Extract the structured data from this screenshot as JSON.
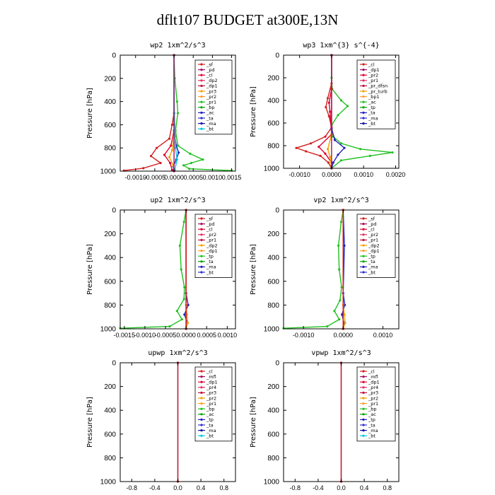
{
  "figure_title": "dflt107  BUDGET at300E,13N",
  "chart_data": [
    {
      "type": "line",
      "title": "wp2   1xm^2/s^3",
      "ylabel": "Pressure [hPa]",
      "y_ticks": [
        0,
        200,
        400,
        600,
        800,
        1000
      ],
      "x_tick_labels": [
        "-0.0010",
        "-0.0005",
        "0.0000",
        "0.0005",
        "0.0010",
        "0.0015"
      ],
      "xlim": [
        -0.0014,
        0.0016
      ],
      "ylim": [
        1000,
        0
      ],
      "legend": [
        "_sf",
        "_pd",
        "_cl",
        "_dp2",
        "_dp1",
        "_pr3",
        "_pr2",
        "_pr1",
        "_bp",
        "_ac",
        "_ta",
        "_ma",
        "_bt"
      ],
      "series": [
        {
          "color": "#2020c0",
          "points": [
            [
              0,
              0
            ],
            [
              0,
              600
            ],
            [
              2e-05,
              700
            ],
            [
              6e-05,
              780
            ],
            [
              0.00012,
              840
            ],
            [
              6e-05,
              900
            ],
            [
              -2e-05,
              960
            ],
            [
              0,
              1000
            ]
          ]
        },
        {
          "color": "#d02020",
          "points": [
            [
              0,
              0
            ],
            [
              0,
              500
            ],
            [
              -5e-05,
              600
            ],
            [
              -0.00012,
              720
            ],
            [
              -0.00045,
              800
            ],
            [
              -0.0006,
              870
            ],
            [
              -0.00035,
              930
            ],
            [
              -0.0008,
              975
            ],
            [
              -0.0013,
              995
            ]
          ]
        },
        {
          "color": "#e00030",
          "points": [
            [
              0,
              0
            ],
            [
              0,
              650
            ],
            [
              -8e-05,
              780
            ],
            [
              -0.00025,
              860
            ],
            [
              -0.0001,
              930
            ],
            [
              -5e-05,
              990
            ]
          ]
        },
        {
          "color": "#f5a000",
          "points": [
            [
              0,
              0
            ],
            [
              0,
              700
            ],
            [
              -5e-05,
              820
            ],
            [
              -0.00012,
              880
            ],
            [
              -2e-05,
              950
            ],
            [
              0,
              1000
            ]
          ]
        },
        {
          "color": "#20c020",
          "points": [
            [
              0,
              0
            ],
            [
              2e-05,
              200
            ],
            [
              8e-05,
              400
            ],
            [
              0.0001,
              500
            ],
            [
              4e-05,
              650
            ],
            [
              0.0001,
              780
            ],
            [
              0.00042,
              850
            ],
            [
              0.00075,
              900
            ],
            [
              0.00045,
              930
            ],
            [
              0.00025,
              950
            ],
            [
              0.0004,
              980
            ],
            [
              0.0015,
              995
            ]
          ]
        },
        {
          "color": "#00c8e0",
          "points": [
            [
              0,
              0
            ],
            [
              1e-05,
              500
            ],
            [
              4e-05,
              800
            ],
            [
              8e-05,
              900
            ],
            [
              2e-05,
              990
            ]
          ]
        },
        {
          "color": "#a01060",
          "points": [
            [
              0,
              0
            ],
            [
              0,
              1000
            ]
          ]
        }
      ]
    },
    {
      "type": "line",
      "title": "wp3   1xm^{3} s^{-4}",
      "ylabel": "Pressure [hPa]",
      "y_ticks": [
        0,
        200,
        400,
        600,
        800,
        1000
      ],
      "x_tick_labels": [
        "-0.0010",
        "0.0000",
        "0.0010",
        "0.0020"
      ],
      "xlim": [
        -0.0015,
        0.0021
      ],
      "ylim": [
        1000,
        0
      ],
      "legend": [
        "_cl",
        "_dp1",
        "_pr2",
        "_pr1",
        "_pr_dfsn",
        "_pr_turb",
        "_bp1",
        "_ac",
        "_tp",
        "_ta",
        "_ma",
        "_bt"
      ],
      "series": [
        {
          "color": "#20c020",
          "points": [
            [
              0,
              0
            ],
            [
              0,
              200
            ],
            [
              2e-05,
              300
            ],
            [
              0.0003,
              400
            ],
            [
              0.0005,
              450
            ],
            [
              0.0002,
              530
            ],
            [
              0,
              620
            ],
            [
              5e-05,
              720
            ],
            [
              0.0003,
              780
            ],
            [
              0.0009,
              830
            ],
            [
              0.0019,
              860
            ],
            [
              0.0012,
              890
            ],
            [
              0.0003,
              930
            ],
            [
              0,
              1000
            ]
          ]
        },
        {
          "color": "#d02020",
          "points": [
            [
              0,
              0
            ],
            [
              0,
              250
            ],
            [
              -0.00012,
              380
            ],
            [
              -0.00018,
              460
            ],
            [
              -8e-05,
              540
            ],
            [
              0,
              640
            ],
            [
              -0.0002,
              720
            ],
            [
              -0.00065,
              780
            ],
            [
              -0.0011,
              820
            ],
            [
              -0.0008,
              850
            ],
            [
              -0.00035,
              890
            ],
            [
              -0.0001,
              950
            ],
            [
              0,
              1000
            ]
          ]
        },
        {
          "color": "#e00030",
          "points": [
            [
              0,
              0
            ],
            [
              0,
              300
            ],
            [
              -8e-05,
              420
            ],
            [
              -5e-05,
              500
            ],
            [
              0,
              700
            ],
            [
              -0.0004,
              810
            ],
            [
              -0.0002,
              870
            ],
            [
              0,
              950
            ]
          ]
        },
        {
          "color": "#2020c0",
          "points": [
            [
              0,
              0
            ],
            [
              0,
              650
            ],
            [
              0.0001,
              750
            ],
            [
              0.0004,
              820
            ],
            [
              0.0002,
              880
            ],
            [
              5e-05,
              950
            ],
            [
              0,
              1000
            ]
          ]
        },
        {
          "color": "#f5a000",
          "points": [
            [
              0,
              0
            ],
            [
              0,
              700
            ],
            [
              -0.00012,
              830
            ],
            [
              -5e-05,
              900
            ],
            [
              0,
              1000
            ]
          ]
        },
        {
          "color": "#a01060",
          "points": [
            [
              0,
              0
            ],
            [
              0,
              1000
            ]
          ]
        }
      ]
    },
    {
      "type": "line",
      "title": "up2   1xm^2/s^3",
      "ylabel": "Pressure [hPa]",
      "y_ticks": [
        0,
        200,
        400,
        600,
        800,
        1000
      ],
      "x_tick_labels": [
        "-0.0015",
        "-0.0010",
        "-0.0005",
        "0.0000",
        "0.0005",
        "0.0010"
      ],
      "xlim": [
        -0.0016,
        0.0012
      ],
      "ylim": [
        1000,
        0
      ],
      "legend": [
        "_sf",
        "_pd",
        "_cl",
        "_pr2",
        "_pr1",
        "_dp2",
        "_dp1",
        "_tp",
        "_ta",
        "_ma",
        "_bt"
      ],
      "series": [
        {
          "color": "#20c020",
          "points": [
            [
              0,
              0
            ],
            [
              -5e-05,
              100
            ],
            [
              -0.00015,
              300
            ],
            [
              -0.00012,
              500
            ],
            [
              -4e-05,
              650
            ],
            [
              -5e-05,
              750
            ],
            [
              -0.00022,
              850
            ],
            [
              -0.0001,
              920
            ],
            [
              -0.0004,
              980
            ],
            [
              -0.0016,
              995
            ]
          ]
        },
        {
          "color": "#2020c0",
          "points": [
            [
              0,
              0
            ],
            [
              0,
              700
            ],
            [
              5e-05,
              800
            ],
            [
              -4e-05,
              880
            ],
            [
              3e-05,
              950
            ],
            [
              0,
              1000
            ]
          ]
        },
        {
          "color": "#f5a000",
          "points": [
            [
              0,
              0
            ],
            [
              0,
              800
            ],
            [
              2e-05,
              880
            ],
            [
              4e-05,
              950
            ],
            [
              0,
              1000
            ]
          ]
        },
        {
          "color": "#e00030",
          "points": [
            [
              0,
              0
            ],
            [
              0,
              1000
            ]
          ]
        },
        {
          "color": "#d02020",
          "points": [
            [
              0,
              0
            ],
            [
              0,
              1000
            ]
          ]
        }
      ]
    },
    {
      "type": "line",
      "title": "vp2   1xm^2/s^3",
      "ylabel": "Pressure [hPa]",
      "y_ticks": [
        0,
        200,
        400,
        600,
        800,
        1000
      ],
      "x_tick_labels": [
        "-0.0010",
        "0.0000",
        "0.0010"
      ],
      "xlim": [
        -0.0015,
        0.0014
      ],
      "ylim": [
        1000,
        0
      ],
      "legend": [
        "_sf",
        "_pd",
        "_cl",
        "_pr2",
        "_pr1",
        "_dp2",
        "_dp1",
        "_tp",
        "_ta",
        "_ma",
        "_bt"
      ],
      "series": [
        {
          "color": "#20c020",
          "points": [
            [
              0,
              0
            ],
            [
              -5e-05,
              100
            ],
            [
              -0.00012,
              300
            ],
            [
              -0.0001,
              500
            ],
            [
              -4e-05,
              650
            ],
            [
              -8e-05,
              760
            ],
            [
              -0.00022,
              850
            ],
            [
              -0.0001,
              920
            ],
            [
              -0.0004,
              980
            ],
            [
              -0.0015,
              995
            ]
          ]
        },
        {
          "color": "#2020c0",
          "points": [
            [
              0,
              0
            ],
            [
              3e-05,
              300
            ],
            [
              0,
              700
            ],
            [
              4e-05,
              800
            ],
            [
              -3e-05,
              880
            ],
            [
              2e-05,
              950
            ],
            [
              0,
              1000
            ]
          ]
        },
        {
          "color": "#f5a000",
          "points": [
            [
              0,
              0
            ],
            [
              0,
              800
            ],
            [
              3e-05,
              880
            ],
            [
              5e-05,
              950
            ],
            [
              0,
              1000
            ]
          ]
        },
        {
          "color": "#e00030",
          "points": [
            [
              0,
              0
            ],
            [
              0,
              1000
            ]
          ]
        },
        {
          "color": "#d02020",
          "points": [
            [
              0,
              0
            ],
            [
              0,
              1000
            ]
          ]
        }
      ]
    },
    {
      "type": "line",
      "title": "upwp   1xm^2/s^3",
      "ylabel": "Pressure [hPa]",
      "y_ticks": [
        0,
        200,
        400,
        600,
        800,
        1000
      ],
      "x_tick_labels": [
        "-0.8",
        "-0.4",
        "0.0",
        "0.4",
        "0.8"
      ],
      "xlim": [
        -1.0,
        1.0
      ],
      "ylim": [
        1000,
        0
      ],
      "legend": [
        "_cl",
        "_mfl",
        "_dp1",
        "_pr4",
        "_pr3",
        "_pr2",
        "_pr1",
        "_bp",
        "_ac",
        "_tp",
        "_ta",
        "_ma",
        "_bt"
      ],
      "series": [
        {
          "color": "#7030a0",
          "points": [
            [
              0,
              0
            ],
            [
              0,
              1000
            ]
          ]
        },
        {
          "color": "#d02020",
          "points": [
            [
              0,
              0
            ],
            [
              0,
              1000
            ]
          ]
        }
      ]
    },
    {
      "type": "line",
      "title": "vpwp   1xm^2/s^3",
      "ylabel": "Pressure [hPa]",
      "y_ticks": [
        0,
        200,
        400,
        600,
        800,
        1000
      ],
      "x_tick_labels": [
        "-0.8",
        "-0.4",
        "0.0",
        "0.4",
        "0.8"
      ],
      "xlim": [
        -1.0,
        1.0
      ],
      "ylim": [
        1000,
        0
      ],
      "legend": [
        "_cl",
        "_mfl",
        "_dp1",
        "_pr4",
        "_pr3",
        "_pr2",
        "_pr1",
        "_bp",
        "_ac",
        "_tp",
        "_ta",
        "_ma",
        "_bt"
      ],
      "series": [
        {
          "color": "#7030a0",
          "points": [
            [
              0,
              0
            ],
            [
              0,
              1000
            ]
          ]
        },
        {
          "color": "#d02020",
          "points": [
            [
              0,
              0
            ],
            [
              0,
              1000
            ]
          ]
        }
      ]
    }
  ],
  "legend_palette": [
    "#d02020",
    "#a01060",
    "#e00030",
    "#e03060",
    "#c01040",
    "#f5a000",
    "#ffa030",
    "#20c020",
    "#00a000",
    "#2020c0",
    "#3030d0",
    "#1010a0",
    "#00c8e0"
  ]
}
